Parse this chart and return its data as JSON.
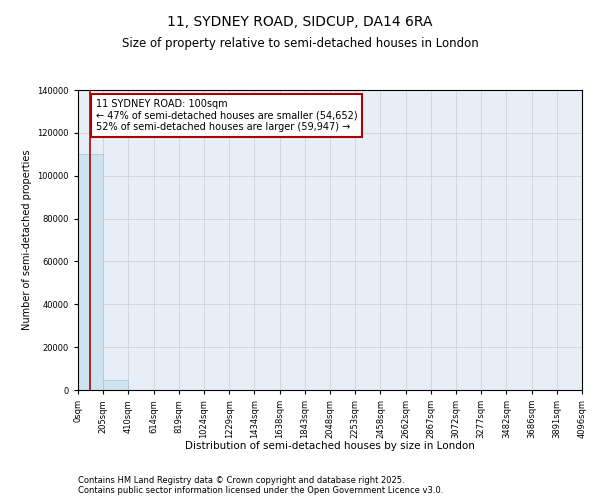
{
  "title": "11, SYDNEY ROAD, SIDCUP, DA14 6RA",
  "subtitle": "Size of property relative to semi-detached houses in London",
  "xlabel": "Distribution of semi-detached houses by size in London",
  "ylabel": "Number of semi-detached properties",
  "property_size": 100,
  "property_label": "11 SYDNEY ROAD: 100sqm",
  "pct_smaller": 47,
  "count_smaller": 54652,
  "pct_larger": 52,
  "count_larger": 59947,
  "bin_edges": [
    0,
    205,
    410,
    614,
    819,
    1024,
    1229,
    1434,
    1638,
    1843,
    2048,
    2253,
    2458,
    2662,
    2867,
    3072,
    3277,
    3482,
    3686,
    3891,
    4096
  ],
  "bar_heights": [
    110000,
    4800,
    200,
    40,
    15,
    8,
    5,
    3,
    2,
    2,
    1,
    1,
    1,
    1,
    0,
    0,
    0,
    0,
    0,
    0
  ],
  "bar_color": "#cde4f0",
  "bar_edgecolor": "#9dc4d8",
  "line_color": "#aa0000",
  "annotation_box_color": "#aa0000",
  "ylim": [
    0,
    140000
  ],
  "xlim": [
    0,
    4096
  ],
  "grid_color": "#cccccc",
  "background_color": "#e8eef8",
  "footer": "Contains HM Land Registry data © Crown copyright and database right 2025.\nContains public sector information licensed under the Open Government Licence v3.0.",
  "title_fontsize": 10,
  "subtitle_fontsize": 8.5,
  "tick_fontsize": 6,
  "ylabel_fontsize": 7,
  "xlabel_fontsize": 7.5,
  "annotation_fontsize": 7,
  "footer_fontsize": 6
}
